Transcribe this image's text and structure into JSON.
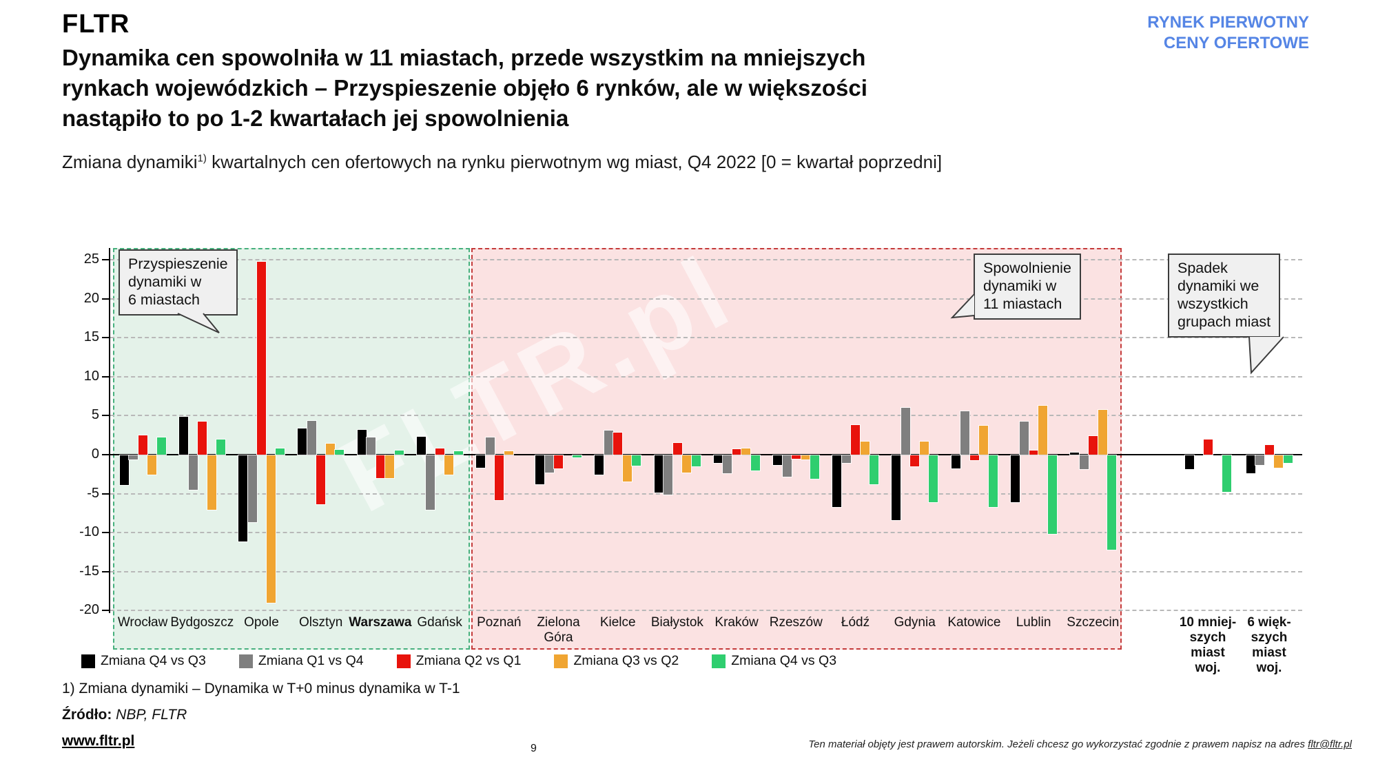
{
  "header": {
    "logo": "FLTR",
    "corner_line1": "RYNEK PIERWOTNY",
    "corner_line2": "CENY OFERTOWE",
    "corner_color": "#5585e5",
    "title_lines": [
      "Dynamika cen spowolniła w 11 miastach, przede wszystkim na mniejszych",
      "rynkach wojewódzkich – Przyspieszenie objęło 6 rynków, ale w większości",
      "nastąpiło to po 1-2 kwartałach jej spowolnienia"
    ]
  },
  "subtitle": {
    "prefix": "Zmiana dynamiki",
    "sup": "1)",
    "rest": " kwartalnych cen ofertowych na rynku pierwotnym wg miast, Q4 2022 [0 = kwartał poprzedni]"
  },
  "callouts": {
    "accel": {
      "lines": [
        "Przyspieszenie",
        "dynamiki w",
        "6 miastach"
      ]
    },
    "decel": {
      "lines": [
        "Spowolnienie",
        "dynamiki w",
        "11 miastach"
      ]
    },
    "all": {
      "lines": [
        "Spadek",
        "dynamiki we",
        "wszystkich",
        "grupach miast"
      ]
    }
  },
  "watermark": "FLTR.pl",
  "footer": {
    "footnote": "1) Zmiana dynamiki – Dynamika w T+0 minus dynamika w T-1",
    "source_label": "Źródło:",
    "source_value": " NBP, FLTR",
    "website": "www.fltr.pl",
    "page_number": "9",
    "copyright_prefix": "Ten materiał objęty jest prawem autorskim. Jeżeli chcesz go wykorzystać zgodnie z prawem napisz na adres ",
    "copyright_email": "fltr@fltr.pl"
  },
  "chart_data": {
    "type": "bar",
    "title": "Zmiana dynamiki kwartalnych cen ofertowych na rynku pierwotnym wg miast, Q4 2022",
    "ylim": [
      -20,
      25
    ],
    "yticks": [
      25,
      20,
      15,
      10,
      5,
      0,
      -5,
      -10,
      -15,
      -20
    ],
    "grid": "dashed-horizontal",
    "legend_position": "bottom",
    "regions": [
      {
        "name": "accel",
        "label": "Przyspieszenie dynamiki w 6 miastach",
        "background": "#e4f2e9",
        "border": "#46b07d",
        "category_span": [
          0,
          5
        ]
      },
      {
        "name": "decel",
        "label": "Spowolnienie dynamiki w 11 miastach",
        "background": "#fbe2e2",
        "border": "#c43a3a",
        "category_span": [
          6,
          16
        ]
      }
    ],
    "categories": [
      {
        "lines": [
          "Wrocław"
        ],
        "bold": false
      },
      {
        "lines": [
          "Bydgoszcz"
        ],
        "bold": false
      },
      {
        "lines": [
          "Opole"
        ],
        "bold": false
      },
      {
        "lines": [
          "Olsztyn"
        ],
        "bold": false
      },
      {
        "lines": [
          "Warszawa"
        ],
        "bold": true
      },
      {
        "lines": [
          "Gdańsk"
        ],
        "bold": false
      },
      {
        "lines": [
          "Poznań"
        ],
        "bold": false
      },
      {
        "lines": [
          "Zielona",
          "Góra"
        ],
        "bold": false
      },
      {
        "lines": [
          "Kielce"
        ],
        "bold": false
      },
      {
        "lines": [
          "Białystok"
        ],
        "bold": false
      },
      {
        "lines": [
          "Kraków"
        ],
        "bold": false
      },
      {
        "lines": [
          "Rzeszów"
        ],
        "bold": false
      },
      {
        "lines": [
          "Łódź"
        ],
        "bold": false
      },
      {
        "lines": [
          "Gdynia"
        ],
        "bold": false
      },
      {
        "lines": [
          "Katowice"
        ],
        "bold": false
      },
      {
        "lines": [
          "Lublin"
        ],
        "bold": false
      },
      {
        "lines": [
          "Szczecin"
        ],
        "bold": false
      },
      {
        "lines": [
          "10 mniej-",
          "szych",
          "miast",
          "woj."
        ],
        "bold": true
      },
      {
        "lines": [
          "6 więk-",
          "szych",
          "miast",
          "woj."
        ],
        "bold": true
      }
    ],
    "series": [
      {
        "name": "Zmiana Q4 vs Q3",
        "color": "#000000",
        "values": [
          -3.8,
          4.9,
          -11.0,
          3.4,
          3.2,
          2.3,
          -1.6,
          -3.7,
          -2.5,
          -4.8,
          -1.0,
          -1.2,
          -6.6,
          -8.3,
          -1.7,
          -6.0,
          0.3,
          -1.8,
          -2.3
        ]
      },
      {
        "name": "Zmiana Q1 vs Q4",
        "color": "#7f7f7f",
        "values": [
          -0.5,
          -4.4,
          -8.6,
          4.3,
          2.2,
          -7.0,
          2.2,
          -2.2,
          3.1,
          -5.0,
          -2.3,
          -2.7,
          -1.0,
          6.0,
          5.6,
          4.2,
          -1.8,
          0,
          -1.2
        ]
      },
      {
        "name": "Zmiana Q2 vs Q1",
        "color": "#e8130c",
        "values": [
          2.5,
          4.2,
          24.7,
          -6.3,
          -2.9,
          0.8,
          -5.7,
          -1.7,
          2.8,
          1.5,
          0.7,
          -0.4,
          3.8,
          -1.4,
          -0.6,
          0.5,
          2.4,
          1.9,
          1.2
        ]
      },
      {
        "name": "Zmiana Q3 vs Q2",
        "color": "#f0a532",
        "values": [
          -2.5,
          -7.0,
          -18.9,
          1.4,
          -2.9,
          -2.5,
          0.4,
          0,
          -3.4,
          -2.2,
          0.8,
          -0.5,
          1.7,
          1.7,
          3.7,
          6.3,
          5.7,
          0,
          -1.6
        ]
      },
      {
        "name": "Zmiana Q4 vs Q3",
        "color": "#2fce6f",
        "values": [
          2.2,
          1.9,
          0.8,
          0.6,
          0.5,
          0.4,
          0,
          -0.3,
          -1.3,
          -1.4,
          -1.9,
          -3.0,
          -3.7,
          -6.0,
          -6.6,
          -10.1,
          -12.1,
          -4.7,
          -1.0
        ]
      }
    ]
  }
}
